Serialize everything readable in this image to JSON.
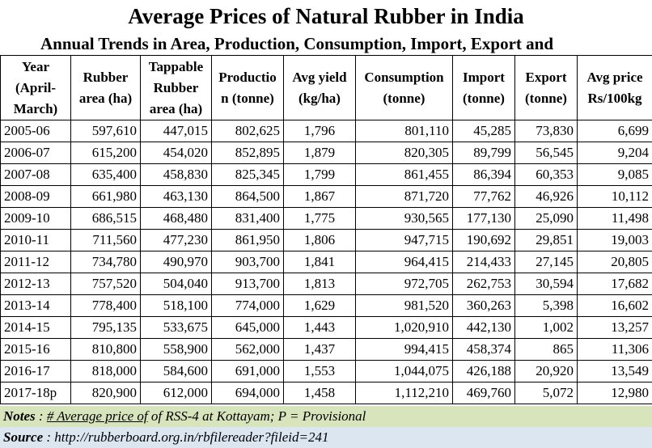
{
  "title": "Average Prices of Natural Rubber in India",
  "subtitle": "Annual Trends in Area, Production, Consumption, Import, Export and",
  "columns": [
    {
      "label": "Year (April-March)"
    },
    {
      "label": "Rubber area (ha)"
    },
    {
      "label": "Tappable Rubber area (ha)"
    },
    {
      "label": "Production (tonne)"
    },
    {
      "label": "Avg yield (kg/ha)"
    },
    {
      "label": "Consumption (tonne)"
    },
    {
      "label": "Import (tonne)"
    },
    {
      "label": "Export (tonne)"
    },
    {
      "label": "Avg price Rs/100kg"
    }
  ],
  "header_display": {
    "year_1": "Year",
    "year_2": "(April-",
    "year_3": "March)",
    "area_1": "Rubber",
    "area_2": "area (ha)",
    "tap_1": "Tappable",
    "tap_2": "Rubber",
    "tap_3": "area (ha)",
    "prod_1": "Productio",
    "prod_2": "n (tonne)",
    "yield_1": "Avg yield",
    "yield_2": "(kg/ha)",
    "cons_1": "Consumption",
    "cons_2": "(tonne)",
    "imp_1": "Import",
    "imp_2": "(tonne)",
    "exp_1": "Export",
    "exp_2": "(tonne)",
    "price_1": "Avg price",
    "price_2": "Rs/100kg"
  },
  "rows": [
    [
      "2005-06",
      "597,610",
      "447,015",
      "802,625",
      "1,796",
      "801,110",
      "45,285",
      "73,830",
      "6,699"
    ],
    [
      "2006-07",
      "615,200",
      "454,020",
      "852,895",
      "1,879",
      "820,305",
      "89,799",
      "56,545",
      "9,204"
    ],
    [
      "2007-08",
      "635,400",
      "458,830",
      "825,345",
      "1,799",
      "861,455",
      "86,394",
      "60,353",
      "9,085"
    ],
    [
      "2008-09",
      "661,980",
      "463,130",
      "864,500",
      "1,867",
      "871,720",
      "77,762",
      "46,926",
      "10,112"
    ],
    [
      "2009-10",
      "686,515",
      "468,480",
      "831,400",
      "1,775",
      "930,565",
      "177,130",
      "25,090",
      "11,498"
    ],
    [
      "2010-11",
      "711,560",
      "477,230",
      "861,950",
      "1,806",
      "947,715",
      "190,692",
      "29,851",
      "19,003"
    ],
    [
      "2011-12",
      "734,780",
      "490,970",
      "903,700",
      "1,841",
      "964,415",
      "214,433",
      "27,145",
      "20,805"
    ],
    [
      "2012-13",
      "757,520",
      "504,040",
      "913,700",
      "1,813",
      "972,705",
      "262,753",
      "30,594",
      "17,682"
    ],
    [
      "2013-14",
      "778,400",
      "518,100",
      "774,000",
      "1,629",
      "981,520",
      "360,263",
      "5,398",
      "16,602"
    ],
    [
      "2014-15",
      "795,135",
      "533,675",
      "645,000",
      "1,443",
      "1,020,910",
      "442,130",
      "1,002",
      "13,257"
    ],
    [
      "2015-16",
      "810,800",
      "558,900",
      "562,000",
      "1,437",
      "994,415",
      "458,374",
      "865",
      "11,306"
    ],
    [
      "2016-17",
      "818,000",
      "584,600",
      "691,000",
      "1,553",
      "1,044,075",
      "426,188",
      "20,920",
      "13,549"
    ],
    [
      "2017-18p",
      "820,900",
      "612,000",
      "694,000",
      "1,458",
      "1,112,210",
      "469,760",
      "5,072",
      "12,980"
    ]
  ],
  "notes": {
    "label": "Notes",
    "separator": " : ",
    "underlined": "# Average price of",
    "rest": " of RSS-4 at Kottayam; P = Provisional"
  },
  "source": {
    "label": "Source",
    "separator": " : ",
    "text": "http://rubberboard.org.in/rbfilereader?fileid=241"
  },
  "colors": {
    "notes_bg": "#d8e4bc",
    "source_bg": "#dce6f1",
    "grid": "#000000"
  }
}
